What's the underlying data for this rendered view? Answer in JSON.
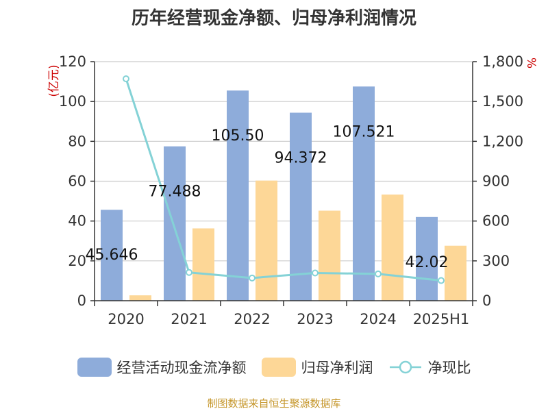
{
  "title": "历年经营现金净额、归母净利润情况",
  "source": "制图数据来自恒生聚源数据库",
  "colors": {
    "bar1": "#8eacda",
    "bar2": "#fdd797",
    "line": "#84d2d6",
    "source_text": "#c5962a",
    "unit_text": "#cc0000"
  },
  "chart_data": {
    "type": "bar",
    "title": "历年经营现金净额、归母净利润情况",
    "categories": [
      "2020",
      "2021",
      "2022",
      "2023",
      "2024",
      "2025H1"
    ],
    "y_left": {
      "label": "(亿元)",
      "lim": [
        0,
        120
      ],
      "ticks": [
        "0",
        "20",
        "40",
        "60",
        "80",
        "100",
        "120"
      ]
    },
    "y_right": {
      "label": "%",
      "lim": [
        0,
        1800
      ],
      "ticks": [
        "0",
        "300",
        "600",
        "900",
        "1,200",
        "1,500",
        "1,800"
      ]
    },
    "grid": true,
    "legend_position": "bottom",
    "series": [
      {
        "name": "经营活动现金流净额",
        "type": "bar",
        "axis": "left",
        "values": [
          45.646,
          77.488,
          105.5,
          94.372,
          107.521,
          42.02
        ],
        "data_labels": [
          "45.646",
          "77.488",
          "105.50",
          "94.372",
          "107.521",
          "42.02"
        ]
      },
      {
        "name": "归母净利润",
        "type": "bar",
        "axis": "left",
        "values": [
          2.7,
          36.3,
          60.3,
          45.2,
          53.3,
          27.6
        ]
      },
      {
        "name": "净现比",
        "type": "line",
        "axis": "right",
        "values": [
          1671,
          213,
          171,
          209,
          202,
          152
        ]
      }
    ]
  }
}
